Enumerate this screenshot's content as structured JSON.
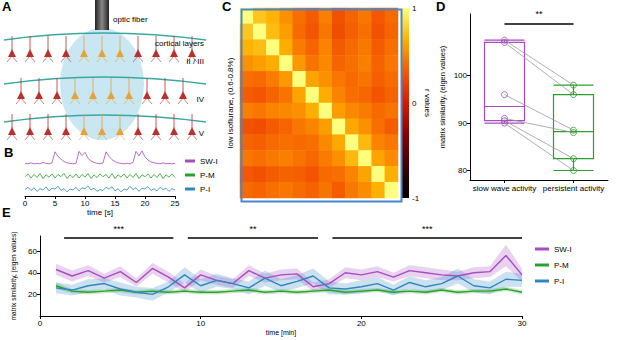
{
  "diagram": {
    "title": "A",
    "labels": {
      "fiber": "optic fiber",
      "layers": "cortical layers",
      "l23": "II / III",
      "l4": "IV",
      "l5": "V"
    }
  },
  "chart_data": [
    {
      "type": "line",
      "title": "B",
      "x": [
        0,
        0.5,
        1,
        1.5,
        2,
        2.5,
        3,
        3.5,
        4,
        4.5,
        5,
        5.5,
        6,
        6.5,
        7,
        7.5,
        8,
        8.5,
        9,
        9.5,
        10,
        10.5,
        11,
        11.5,
        12,
        12.5,
        13,
        13.5,
        14,
        14.5,
        15,
        15.5,
        16,
        16.5,
        17,
        17.5,
        18,
        18.5,
        19,
        19.5,
        20,
        20.5,
        21,
        21.5,
        22,
        22.5,
        23,
        23.5,
        24,
        24.5,
        25
      ],
      "xlim": [
        0,
        25
      ],
      "xticks": [
        0,
        5,
        10,
        15,
        20,
        25
      ],
      "ylim": [
        0,
        10
      ],
      "xlabel": "time [s]",
      "tick_labels": "x",
      "legend": "right",
      "series": [
        {
          "name": "SW-I",
          "color": "#a64dc0",
          "values": [
            7.1,
            7.0,
            7.2,
            7.0,
            7.1,
            7.0,
            7.3,
            7.1,
            7.0,
            7.2,
            9.6,
            8.6,
            8.0,
            7.5,
            7.2,
            7.1,
            7.0,
            7.1,
            9.7,
            8.8,
            9.5,
            8.2,
            7.6,
            7.3,
            7.1,
            7.0,
            7.2,
            9.6,
            8.6,
            7.9,
            7.5,
            7.2,
            7.1,
            7.0,
            7.1,
            7.0,
            7.3,
            9.7,
            8.7,
            9.8,
            8.5,
            7.8,
            7.4,
            7.2,
            7.1,
            7.0,
            7.2,
            7.0,
            7.1,
            7.0,
            7.1
          ]
        },
        {
          "name": "P-M",
          "color": "#2ca02c",
          "values": [
            4.2,
            4.8,
            3.9,
            4.7,
            4.0,
            4.9,
            3.8,
            4.6,
            4.1,
            4.8,
            3.9,
            4.7,
            4.2,
            4.9,
            3.8,
            4.6,
            4.0,
            4.8,
            3.9,
            4.7,
            4.1,
            4.9,
            3.8,
            4.6,
            4.0,
            4.8,
            4.2,
            4.7,
            3.9,
            4.9,
            3.8,
            4.6,
            4.1,
            4.8,
            3.9,
            4.7,
            4.0,
            4.9,
            3.8,
            4.6,
            4.2,
            4.8,
            3.9,
            4.7,
            4.0,
            4.9,
            3.8,
            4.6,
            4.1,
            4.8,
            4.0
          ]
        },
        {
          "name": "P-I",
          "color": "#2e86c1",
          "values": [
            1.4,
            1.9,
            1.2,
            1.8,
            1.0,
            1.6,
            1.3,
            2.0,
            1.1,
            1.7,
            1.5,
            2.1,
            1.2,
            1.6,
            0.9,
            1.5,
            1.3,
            1.9,
            1.1,
            1.8,
            1.6,
            2.2,
            1.3,
            1.7,
            1.0,
            1.4,
            1.2,
            1.9,
            1.5,
            2.0,
            1.1,
            1.6,
            0.9,
            1.5,
            1.3,
            2.1,
            1.4,
            1.8,
            1.0,
            1.7,
            1.5,
            2.0,
            1.2,
            1.6,
            1.1,
            1.9,
            1.4,
            1.7,
            1.0,
            1.6,
            1.3
          ]
        }
      ]
    },
    {
      "type": "heatmap",
      "title": "C",
      "ylabel": "low isoflurane, (0.6-0.8%)",
      "tick_labels": false,
      "cells": [
        [
          1,
          0.75,
          0.68,
          0.55,
          0.42,
          0.35,
          0.48,
          0.3,
          0.38,
          0.45,
          0.33,
          0.4
        ],
        [
          0.75,
          1,
          0.72,
          0.6,
          0.4,
          0.32,
          0.45,
          0.28,
          0.36,
          0.42,
          0.3,
          0.38
        ],
        [
          0.68,
          0.72,
          1,
          0.65,
          0.47,
          0.38,
          0.5,
          0.34,
          0.4,
          0.46,
          0.35,
          0.42
        ],
        [
          0.55,
          0.6,
          0.65,
          1,
          0.58,
          0.44,
          0.52,
          0.38,
          0.42,
          0.48,
          0.37,
          0.45
        ],
        [
          0.42,
          0.4,
          0.47,
          0.58,
          1,
          0.62,
          0.55,
          0.45,
          0.4,
          0.44,
          0.36,
          0.41
        ],
        [
          0.35,
          0.32,
          0.38,
          0.44,
          0.62,
          1,
          0.66,
          0.5,
          0.42,
          0.39,
          0.31,
          0.37
        ],
        [
          0.48,
          0.45,
          0.5,
          0.52,
          0.55,
          0.66,
          1,
          0.6,
          0.52,
          0.47,
          0.4,
          0.44
        ],
        [
          0.3,
          0.28,
          0.34,
          0.38,
          0.45,
          0.5,
          0.6,
          1,
          0.64,
          0.55,
          0.42,
          0.35
        ],
        [
          0.38,
          0.36,
          0.4,
          0.42,
          0.4,
          0.42,
          0.52,
          0.64,
          1,
          0.7,
          0.5,
          0.46
        ],
        [
          0.45,
          0.42,
          0.46,
          0.48,
          0.44,
          0.39,
          0.47,
          0.55,
          0.7,
          1,
          0.62,
          0.53
        ],
        [
          0.33,
          0.3,
          0.35,
          0.37,
          0.36,
          0.31,
          0.4,
          0.42,
          0.5,
          0.62,
          1,
          0.67
        ],
        [
          0.4,
          0.38,
          0.42,
          0.45,
          0.41,
          0.37,
          0.44,
          0.35,
          0.46,
          0.53,
          0.67,
          1
        ]
      ],
      "colorbar": {
        "range": [
          -1,
          1
        ],
        "ticks": [
          -1,
          0,
          1
        ],
        "label": "r values"
      }
    },
    {
      "type": "boxplot",
      "title": "D",
      "categories": [
        "slow wave activity",
        "persistent activity"
      ],
      "colors": [
        "#a64dc0",
        "#2ca02c"
      ],
      "values": [
        [
          107.5,
          107,
          96,
          91,
          90.5,
          90
        ],
        [
          98,
          96,
          88.5,
          88,
          82.5,
          80
        ]
      ],
      "box": [
        [
          90,
          90.5,
          93.5,
          107,
          107.5
        ],
        [
          80,
          82.5,
          88.2,
          96,
          98
        ]
      ],
      "ylim": [
        78,
        113
      ],
      "yticks": [
        80,
        90,
        100
      ],
      "ylabel": "matrix similarity, (eigen values)",
      "annotations": [
        {
          "text": "**",
          "x": [
            0,
            1
          ],
          "y": 111
        }
      ]
    },
    {
      "type": "line",
      "title": "E",
      "x": [
        1,
        2,
        3,
        4,
        5,
        6,
        7,
        8,
        9,
        10,
        11,
        12,
        13,
        14,
        15,
        16,
        17,
        18,
        19,
        20,
        21,
        22,
        23,
        24,
        25,
        26,
        27,
        28,
        29,
        30
      ],
      "xlim": [
        0,
        30
      ],
      "xticks": [
        0,
        10,
        20,
        30
      ],
      "ylim": [
        0,
        74
      ],
      "yticks": [
        20,
        40,
        60
      ],
      "xlabel": "time [min]",
      "ylabel": "matrix similarity, (eigen values)",
      "legend": "right",
      "series": [
        {
          "name": "SW-I",
          "color": "#a64dc0",
          "values": [
            43,
            37,
            42,
            35,
            41,
            31,
            44,
            36,
            26,
            38,
            33,
            30,
            42,
            35,
            38,
            39,
            27,
            30,
            40,
            38,
            41,
            36,
            42,
            40,
            38,
            37,
            40,
            41,
            56,
            38
          ],
          "errors": [
            5,
            5,
            5,
            4,
            5,
            4,
            5,
            5,
            4,
            5,
            4,
            4,
            5,
            4,
            5,
            5,
            4,
            4,
            5,
            5,
            5,
            4,
            5,
            5,
            5,
            4,
            5,
            5,
            10,
            6
          ]
        },
        {
          "name": "P-M",
          "color": "#2ca02c",
          "values": [
            28,
            23,
            22,
            23,
            24,
            22,
            23,
            22,
            23,
            22,
            22,
            23,
            24,
            22,
            23,
            22,
            23,
            24,
            22,
            23,
            24,
            22,
            23,
            22,
            24,
            22,
            23,
            23,
            25,
            22
          ],
          "errors": [
            3,
            2,
            2,
            2,
            2,
            2,
            2,
            2,
            2,
            2,
            2,
            2,
            2,
            2,
            2,
            2,
            2,
            2,
            2,
            2,
            2,
            2,
            2,
            2,
            2,
            2,
            2,
            2,
            2,
            2
          ]
        },
        {
          "name": "P-I",
          "color": "#2e86c1",
          "values": [
            26,
            24,
            28,
            30,
            25,
            22,
            20,
            27,
            38,
            28,
            33,
            30,
            26,
            35,
            28,
            32,
            37,
            26,
            25,
            27,
            30,
            24,
            31,
            27,
            30,
            37,
            28,
            26,
            34,
            33
          ],
          "errors": [
            5,
            5,
            6,
            5,
            6,
            5,
            6,
            5,
            7,
            6,
            6,
            5,
            6,
            7,
            6,
            6,
            7,
            6,
            5,
            6,
            6,
            5,
            6,
            6,
            6,
            7,
            6,
            6,
            7,
            6
          ]
        }
      ],
      "annotations": [
        {
          "text": "***",
          "x": [
            1.5,
            8.3
          ],
          "y": 72
        },
        {
          "text": "**",
          "x": [
            9.2,
            17.3
          ],
          "y": 72
        },
        {
          "text": "***",
          "x": [
            18.2,
            30
          ],
          "y": 72
        }
      ]
    }
  ]
}
